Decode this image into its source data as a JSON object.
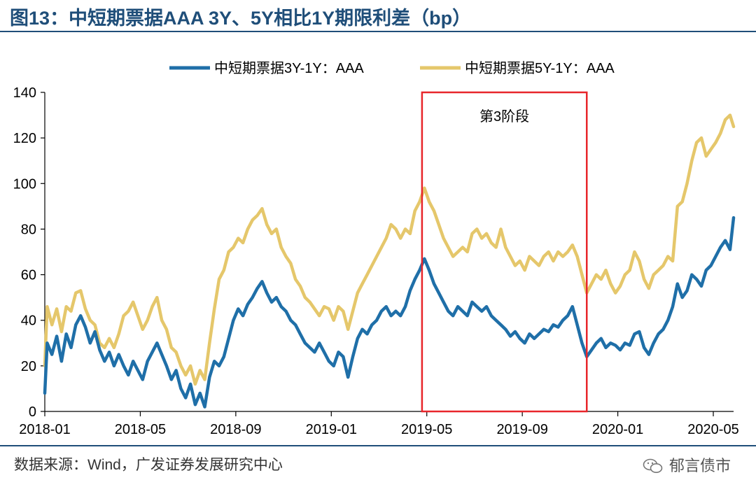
{
  "header": {
    "title": "图13：中短期票据AAA 3Y、5Y相比1Y期限利差（bp）"
  },
  "footer": {
    "source": "数据来源：Wind，广发证券发展研究中心",
    "watermark": "郁言债市"
  },
  "colors": {
    "title": "#1f4e79",
    "series_3y": "#1f6fa8",
    "series_5y": "#e5c76b",
    "highlight_box": "#e8262b"
  },
  "chart_data": {
    "type": "line",
    "title": "中短期票据AAA 3Y、5Y相比1Y期限利差（bp）",
    "xlabel": "",
    "ylabel": "",
    "x_range": [
      "2018-01",
      "2020-06"
    ],
    "x_ticks": [
      "2018-01",
      "2018-05",
      "2018-09",
      "2019-01",
      "2019-05",
      "2019-09",
      "2020-01",
      "2020-05"
    ],
    "x_tick_months": [
      0,
      4,
      8,
      12,
      16,
      20,
      24,
      28
    ],
    "ylim": [
      0,
      140
    ],
    "y_ticks": [
      0,
      20,
      40,
      60,
      80,
      100,
      120,
      140
    ],
    "legend_position": "top",
    "annotation": {
      "label": "第3阶段",
      "x_start_month": 15.8,
      "x_end_month": 22.7
    },
    "series": [
      {
        "name": "中短期票据3Y-1Y：AAA",
        "color": "#1f6fa8",
        "points": [
          [
            0.0,
            8
          ],
          [
            0.1,
            30
          ],
          [
            0.3,
            25
          ],
          [
            0.5,
            33
          ],
          [
            0.7,
            22
          ],
          [
            0.9,
            34
          ],
          [
            1.1,
            28
          ],
          [
            1.3,
            38
          ],
          [
            1.5,
            42
          ],
          [
            1.7,
            37
          ],
          [
            1.9,
            30
          ],
          [
            2.1,
            35
          ],
          [
            2.3,
            27
          ],
          [
            2.5,
            22
          ],
          [
            2.7,
            26
          ],
          [
            2.9,
            20
          ],
          [
            3.1,
            25
          ],
          [
            3.3,
            20
          ],
          [
            3.5,
            16
          ],
          [
            3.7,
            22
          ],
          [
            3.9,
            18
          ],
          [
            4.1,
            14
          ],
          [
            4.3,
            22
          ],
          [
            4.5,
            26
          ],
          [
            4.7,
            30
          ],
          [
            4.9,
            25
          ],
          [
            5.1,
            20
          ],
          [
            5.3,
            14
          ],
          [
            5.5,
            18
          ],
          [
            5.7,
            10
          ],
          [
            5.9,
            6
          ],
          [
            6.1,
            12
          ],
          [
            6.3,
            3
          ],
          [
            6.5,
            8
          ],
          [
            6.7,
            2
          ],
          [
            6.9,
            15
          ],
          [
            7.1,
            22
          ],
          [
            7.3,
            20
          ],
          [
            7.5,
            24
          ],
          [
            7.7,
            32
          ],
          [
            7.9,
            40
          ],
          [
            8.1,
            45
          ],
          [
            8.3,
            42
          ],
          [
            8.5,
            47
          ],
          [
            8.7,
            50
          ],
          [
            8.9,
            54
          ],
          [
            9.1,
            57
          ],
          [
            9.3,
            52
          ],
          [
            9.5,
            48
          ],
          [
            9.7,
            50
          ],
          [
            9.9,
            46
          ],
          [
            10.1,
            44
          ],
          [
            10.3,
            40
          ],
          [
            10.5,
            38
          ],
          [
            10.7,
            34
          ],
          [
            10.9,
            30
          ],
          [
            11.1,
            28
          ],
          [
            11.3,
            26
          ],
          [
            11.5,
            30
          ],
          [
            11.7,
            26
          ],
          [
            11.9,
            22
          ],
          [
            12.1,
            20
          ],
          [
            12.3,
            26
          ],
          [
            12.5,
            24
          ],
          [
            12.7,
            15
          ],
          [
            12.9,
            24
          ],
          [
            13.1,
            32
          ],
          [
            13.3,
            36
          ],
          [
            13.5,
            34
          ],
          [
            13.7,
            38
          ],
          [
            13.9,
            40
          ],
          [
            14.1,
            44
          ],
          [
            14.3,
            46
          ],
          [
            14.5,
            42
          ],
          [
            14.7,
            44
          ],
          [
            14.9,
            42
          ],
          [
            15.1,
            46
          ],
          [
            15.3,
            53
          ],
          [
            15.5,
            58
          ],
          [
            15.7,
            62
          ],
          [
            15.9,
            67
          ],
          [
            16.1,
            62
          ],
          [
            16.3,
            56
          ],
          [
            16.5,
            52
          ],
          [
            16.7,
            48
          ],
          [
            16.9,
            44
          ],
          [
            17.1,
            42
          ],
          [
            17.3,
            46
          ],
          [
            17.5,
            44
          ],
          [
            17.7,
            42
          ],
          [
            17.9,
            48
          ],
          [
            18.1,
            46
          ],
          [
            18.3,
            44
          ],
          [
            18.5,
            46
          ],
          [
            18.7,
            42
          ],
          [
            18.9,
            40
          ],
          [
            19.1,
            38
          ],
          [
            19.3,
            36
          ],
          [
            19.5,
            33
          ],
          [
            19.7,
            35
          ],
          [
            19.9,
            32
          ],
          [
            20.1,
            30
          ],
          [
            20.3,
            34
          ],
          [
            20.5,
            32
          ],
          [
            20.7,
            34
          ],
          [
            20.9,
            36
          ],
          [
            21.1,
            35
          ],
          [
            21.3,
            38
          ],
          [
            21.5,
            37
          ],
          [
            21.7,
            40
          ],
          [
            21.9,
            42
          ],
          [
            22.1,
            46
          ],
          [
            22.3,
            38
          ],
          [
            22.5,
            30
          ],
          [
            22.7,
            24
          ],
          [
            22.9,
            27
          ],
          [
            23.1,
            30
          ],
          [
            23.3,
            32
          ],
          [
            23.5,
            28
          ],
          [
            23.7,
            30
          ],
          [
            23.9,
            29
          ],
          [
            24.1,
            27
          ],
          [
            24.3,
            30
          ],
          [
            24.5,
            29
          ],
          [
            24.7,
            34
          ],
          [
            24.9,
            35
          ],
          [
            25.1,
            28
          ],
          [
            25.3,
            25
          ],
          [
            25.5,
            30
          ],
          [
            25.7,
            34
          ],
          [
            25.9,
            36
          ],
          [
            26.1,
            40
          ],
          [
            26.3,
            46
          ],
          [
            26.5,
            56
          ],
          [
            26.7,
            50
          ],
          [
            26.9,
            53
          ],
          [
            27.1,
            60
          ],
          [
            27.3,
            58
          ],
          [
            27.5,
            55
          ],
          [
            27.7,
            62
          ],
          [
            27.9,
            64
          ],
          [
            28.1,
            68
          ],
          [
            28.3,
            72
          ],
          [
            28.5,
            75
          ],
          [
            28.7,
            71
          ],
          [
            28.85,
            85
          ]
        ]
      },
      {
        "name": "中短期票据5Y-1Y：AAA",
        "color": "#e5c76b",
        "points": [
          [
            0.0,
            20
          ],
          [
            0.1,
            46
          ],
          [
            0.3,
            38
          ],
          [
            0.5,
            45
          ],
          [
            0.7,
            35
          ],
          [
            0.9,
            46
          ],
          [
            1.1,
            44
          ],
          [
            1.3,
            52
          ],
          [
            1.5,
            53
          ],
          [
            1.7,
            45
          ],
          [
            1.9,
            40
          ],
          [
            2.1,
            38
          ],
          [
            2.3,
            30
          ],
          [
            2.5,
            28
          ],
          [
            2.7,
            32
          ],
          [
            2.9,
            28
          ],
          [
            3.1,
            34
          ],
          [
            3.3,
            42
          ],
          [
            3.5,
            44
          ],
          [
            3.7,
            48
          ],
          [
            3.9,
            42
          ],
          [
            4.1,
            36
          ],
          [
            4.3,
            40
          ],
          [
            4.5,
            46
          ],
          [
            4.7,
            50
          ],
          [
            4.9,
            40
          ],
          [
            5.1,
            36
          ],
          [
            5.3,
            28
          ],
          [
            5.5,
            26
          ],
          [
            5.7,
            20
          ],
          [
            5.9,
            16
          ],
          [
            6.1,
            20
          ],
          [
            6.3,
            12
          ],
          [
            6.5,
            18
          ],
          [
            6.7,
            14
          ],
          [
            6.9,
            30
          ],
          [
            7.1,
            45
          ],
          [
            7.3,
            58
          ],
          [
            7.5,
            62
          ],
          [
            7.7,
            70
          ],
          [
            7.9,
            72
          ],
          [
            8.1,
            76
          ],
          [
            8.3,
            74
          ],
          [
            8.5,
            80
          ],
          [
            8.7,
            84
          ],
          [
            8.9,
            86
          ],
          [
            9.1,
            89
          ],
          [
            9.3,
            82
          ],
          [
            9.5,
            78
          ],
          [
            9.7,
            80
          ],
          [
            9.9,
            72
          ],
          [
            10.1,
            68
          ],
          [
            10.3,
            65
          ],
          [
            10.5,
            58
          ],
          [
            10.7,
            55
          ],
          [
            10.9,
            50
          ],
          [
            11.1,
            48
          ],
          [
            11.3,
            45
          ],
          [
            11.5,
            42
          ],
          [
            11.7,
            46
          ],
          [
            11.9,
            45
          ],
          [
            12.1,
            40
          ],
          [
            12.3,
            46
          ],
          [
            12.5,
            44
          ],
          [
            12.7,
            36
          ],
          [
            12.9,
            44
          ],
          [
            13.1,
            52
          ],
          [
            13.3,
            56
          ],
          [
            13.5,
            60
          ],
          [
            13.7,
            64
          ],
          [
            13.9,
            68
          ],
          [
            14.1,
            72
          ],
          [
            14.3,
            76
          ],
          [
            14.5,
            82
          ],
          [
            14.7,
            80
          ],
          [
            14.9,
            76
          ],
          [
            15.1,
            80
          ],
          [
            15.3,
            78
          ],
          [
            15.5,
            88
          ],
          [
            15.7,
            92
          ],
          [
            15.9,
            98
          ],
          [
            16.1,
            92
          ],
          [
            16.3,
            88
          ],
          [
            16.5,
            82
          ],
          [
            16.7,
            76
          ],
          [
            16.9,
            72
          ],
          [
            17.1,
            68
          ],
          [
            17.3,
            70
          ],
          [
            17.5,
            72
          ],
          [
            17.7,
            70
          ],
          [
            17.9,
            78
          ],
          [
            18.1,
            80
          ],
          [
            18.3,
            76
          ],
          [
            18.5,
            78
          ],
          [
            18.7,
            74
          ],
          [
            18.9,
            72
          ],
          [
            19.1,
            80
          ],
          [
            19.3,
            72
          ],
          [
            19.5,
            68
          ],
          [
            19.7,
            64
          ],
          [
            19.9,
            66
          ],
          [
            20.1,
            62
          ],
          [
            20.3,
            68
          ],
          [
            20.5,
            66
          ],
          [
            20.7,
            64
          ],
          [
            20.9,
            68
          ],
          [
            21.1,
            70
          ],
          [
            21.3,
            66
          ],
          [
            21.5,
            70
          ],
          [
            21.7,
            68
          ],
          [
            21.9,
            70
          ],
          [
            22.1,
            73
          ],
          [
            22.3,
            68
          ],
          [
            22.5,
            60
          ],
          [
            22.7,
            52
          ],
          [
            22.9,
            56
          ],
          [
            23.1,
            60
          ],
          [
            23.3,
            58
          ],
          [
            23.5,
            62
          ],
          [
            23.7,
            56
          ],
          [
            23.9,
            52
          ],
          [
            24.1,
            55
          ],
          [
            24.3,
            60
          ],
          [
            24.5,
            62
          ],
          [
            24.7,
            70
          ],
          [
            24.9,
            66
          ],
          [
            25.1,
            58
          ],
          [
            25.3,
            54
          ],
          [
            25.5,
            60
          ],
          [
            25.7,
            62
          ],
          [
            25.9,
            64
          ],
          [
            26.1,
            68
          ],
          [
            26.3,
            66
          ],
          [
            26.5,
            90
          ],
          [
            26.7,
            92
          ],
          [
            26.9,
            100
          ],
          [
            27.1,
            110
          ],
          [
            27.3,
            118
          ],
          [
            27.5,
            120
          ],
          [
            27.7,
            112
          ],
          [
            27.9,
            115
          ],
          [
            28.1,
            118
          ],
          [
            28.3,
            122
          ],
          [
            28.5,
            128
          ],
          [
            28.7,
            130
          ],
          [
            28.85,
            125
          ]
        ]
      }
    ]
  }
}
